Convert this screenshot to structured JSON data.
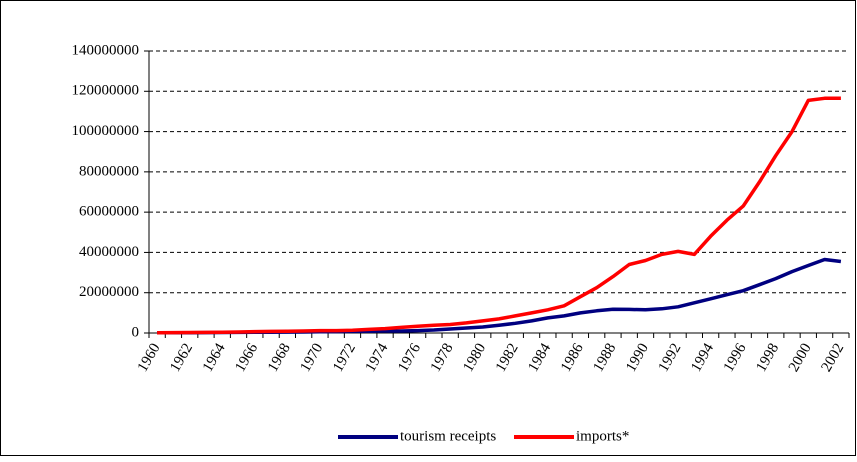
{
  "chart_data": {
    "type": "line",
    "categories": [
      "1960",
      null,
      "1962",
      null,
      "1964",
      null,
      "1966",
      null,
      "1968",
      null,
      "1970",
      null,
      "1972",
      null,
      "1974",
      null,
      "1976",
      null,
      "1978",
      null,
      "1980",
      null,
      "1982",
      null,
      "1984",
      null,
      "1986",
      null,
      "1988",
      null,
      "1990",
      null,
      "1992",
      null,
      "1994",
      null,
      "1996",
      null,
      "1998",
      null,
      "2000",
      null,
      "2002"
    ],
    "series": [
      {
        "name": "tourism receipts",
        "color": "#000080",
        "values": [
          100000,
          100000,
          150000,
          200000,
          250000,
          300000,
          350000,
          400000,
          450000,
          500000,
          600000,
          700000,
          800000,
          900000,
          1000000,
          1000000,
          1200000,
          1500000,
          2000000,
          2500000,
          3000000,
          3800000,
          4800000,
          6000000,
          7500000,
          8500000,
          10000000,
          11000000,
          11800000,
          11700000,
          11500000,
          12000000,
          13000000,
          15000000,
          17000000,
          19000000,
          21000000,
          24000000,
          27000000,
          30500000,
          33500000,
          36500000,
          35500000
        ]
      },
      {
        "name": "imports*",
        "color": "#ff0000",
        "values": [
          150000,
          200000,
          250000,
          300000,
          400000,
          500000,
          700000,
          800000,
          900000,
          1000000,
          1200000,
          1200000,
          1400000,
          1800000,
          2200000,
          2800000,
          3400000,
          3800000,
          4200000,
          5000000,
          6000000,
          7000000,
          8500000,
          10000000,
          11500000,
          13500000,
          18000000,
          22500000,
          28000000,
          34000000,
          36000000,
          39000000,
          40500000,
          39000000,
          48000000,
          56000000,
          63000000,
          75000000,
          88000000,
          100000000,
          115500000,
          116500000,
          116500000
        ]
      }
    ],
    "ylim": [
      0,
      140000000
    ],
    "yticks": [
      0,
      20000000,
      40000000,
      60000000,
      80000000,
      100000000,
      120000000,
      140000000
    ],
    "grid": true,
    "legend": "bottom"
  }
}
